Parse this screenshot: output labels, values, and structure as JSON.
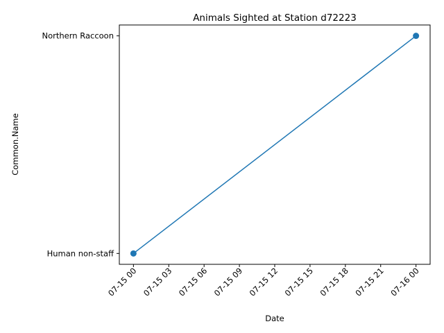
{
  "colors": {
    "series": "#1f77b4",
    "axis": "#000000",
    "background": "#ffffff"
  },
  "chart_data": {
    "type": "line",
    "title": "Animals Sighted at Station d72223",
    "xlabel": "Date",
    "ylabel": "Common.Name",
    "x_ticks": [
      "07-15 00",
      "07-15 03",
      "07-15 06",
      "07-15 09",
      "07-15 12",
      "07-15 15",
      "07-15 18",
      "07-15 21",
      "07-16 00"
    ],
    "x_tick_hours": [
      0,
      3,
      6,
      9,
      12,
      15,
      18,
      21,
      24
    ],
    "x_range_hours": [
      -1.2,
      25.2
    ],
    "y_categories": [
      "Human non-staff",
      "Northern Raccoon"
    ],
    "y_range": [
      -0.05,
      1.05
    ],
    "series": [
      {
        "x": [
          "07-15 00",
          "07-16 00"
        ],
        "x_hours": [
          0,
          24
        ],
        "y": [
          "Human non-staff",
          "Northern Raccoon"
        ],
        "marker": "circle"
      }
    ],
    "grid": false,
    "legend": "none"
  }
}
